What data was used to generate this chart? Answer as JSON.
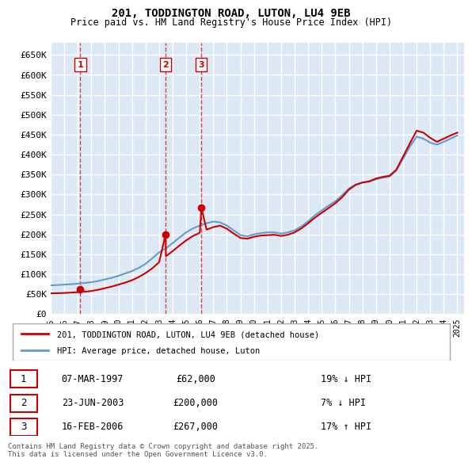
{
  "title": "201, TODDINGTON ROAD, LUTON, LU4 9EB",
  "subtitle": "Price paid vs. HM Land Registry's House Price Index (HPI)",
  "legend_label_red": "201, TODDINGTON ROAD, LUTON, LU4 9EB (detached house)",
  "legend_label_blue": "HPI: Average price, detached house, Luton",
  "footer": "Contains HM Land Registry data © Crown copyright and database right 2025.\nThis data is licensed under the Open Government Licence v3.0.",
  "transactions": [
    {
      "num": 1,
      "date": "07-MAR-1997",
      "price": 62000,
      "hpi_diff": "19% ↓ HPI",
      "year": 1997.19
    },
    {
      "num": 2,
      "date": "23-JUN-2003",
      "price": 200000,
      "hpi_diff": "7% ↓ HPI",
      "year": 2003.48
    },
    {
      "num": 3,
      "date": "16-FEB-2006",
      "price": 267000,
      "hpi_diff": "17% ↑ HPI",
      "year": 2006.12
    }
  ],
  "hpi_years": [
    1995,
    1995.5,
    1996,
    1996.5,
    1997,
    1997.5,
    1998,
    1998.5,
    1999,
    1999.5,
    2000,
    2000.5,
    2001,
    2001.5,
    2002,
    2002.5,
    2003,
    2003.5,
    2004,
    2004.5,
    2005,
    2005.5,
    2006,
    2006.5,
    2007,
    2007.5,
    2008,
    2008.5,
    2009,
    2009.5,
    2010,
    2010.5,
    2011,
    2011.5,
    2012,
    2012.5,
    2013,
    2013.5,
    2014,
    2014.5,
    2015,
    2015.5,
    2016,
    2016.5,
    2017,
    2017.5,
    2018,
    2018.5,
    2019,
    2019.5,
    2020,
    2020.5,
    2021,
    2021.5,
    2022,
    2022.5,
    2023,
    2023.5,
    2024,
    2024.5,
    2025
  ],
  "hpi_values": [
    72000,
    73000,
    74000,
    75000,
    76500,
    78000,
    80000,
    83000,
    87000,
    91000,
    96000,
    102000,
    108000,
    116000,
    126000,
    140000,
    155000,
    165000,
    178000,
    192000,
    205000,
    215000,
    222000,
    228000,
    232000,
    230000,
    222000,
    210000,
    198000,
    195000,
    200000,
    203000,
    205000,
    205000,
    202000,
    205000,
    210000,
    220000,
    233000,
    248000,
    260000,
    272000,
    283000,
    298000,
    315000,
    325000,
    330000,
    332000,
    338000,
    342000,
    345000,
    360000,
    390000,
    420000,
    445000,
    440000,
    430000,
    425000,
    432000,
    440000,
    448000
  ],
  "red_years": [
    1995,
    1995.5,
    1996,
    1996.5,
    1997,
    1997.19,
    1997.5,
    1998,
    1998.5,
    1999,
    1999.5,
    2000,
    2000.5,
    2001,
    2001.5,
    2002,
    2002.5,
    2003,
    2003.48,
    2003.5,
    2004,
    2004.5,
    2005,
    2005.5,
    2006,
    2006.12,
    2006.5,
    2007,
    2007.5,
    2008,
    2008.5,
    2009,
    2009.5,
    2010,
    2010.5,
    2011,
    2011.5,
    2012,
    2012.5,
    2013,
    2013.5,
    2014,
    2014.5,
    2015,
    2015.5,
    2016,
    2016.5,
    2017,
    2017.5,
    2018,
    2018.5,
    2019,
    2019.5,
    2020,
    2020.5,
    2021,
    2021.5,
    2022,
    2022.5,
    2023,
    2023.5,
    2024,
    2024.5,
    2025
  ],
  "red_values": [
    52000,
    52500,
    53000,
    54000,
    55000,
    62000,
    56000,
    58000,
    61000,
    65000,
    69000,
    74000,
    79000,
    85000,
    93000,
    103000,
    115000,
    130000,
    200000,
    145000,
    158000,
    172000,
    185000,
    196000,
    204000,
    267000,
    212000,
    218000,
    222000,
    214000,
    202000,
    191000,
    189000,
    194000,
    197000,
    198000,
    199000,
    196000,
    199000,
    205000,
    215000,
    228000,
    242000,
    254000,
    266000,
    278000,
    293000,
    312000,
    324000,
    330000,
    333000,
    340000,
    344000,
    347000,
    362000,
    395000,
    428000,
    460000,
    455000,
    442000,
    432000,
    440000,
    448000,
    455000
  ],
  "xmin": 1995,
  "xmax": 2025.5,
  "ymin": 0,
  "ymax": 680000,
  "yticks": [
    0,
    50000,
    100000,
    150000,
    200000,
    250000,
    300000,
    350000,
    400000,
    450000,
    500000,
    550000,
    600000,
    650000
  ],
  "ytick_labels": [
    "£0",
    "£50K",
    "£100K",
    "£150K",
    "£200K",
    "£250K",
    "£300K",
    "£350K",
    "£400K",
    "£450K",
    "£500K",
    "£550K",
    "£600K",
    "£650K"
  ],
  "xticks": [
    1995,
    1996,
    1997,
    1998,
    1999,
    2000,
    2001,
    2002,
    2003,
    2004,
    2005,
    2006,
    2007,
    2008,
    2009,
    2010,
    2011,
    2012,
    2013,
    2014,
    2015,
    2016,
    2017,
    2018,
    2019,
    2020,
    2021,
    2022,
    2023,
    2024,
    2025
  ],
  "bg_color": "#dce9f5",
  "grid_color": "#ffffff",
  "red_color": "#cc0000",
  "blue_color": "#6699cc"
}
